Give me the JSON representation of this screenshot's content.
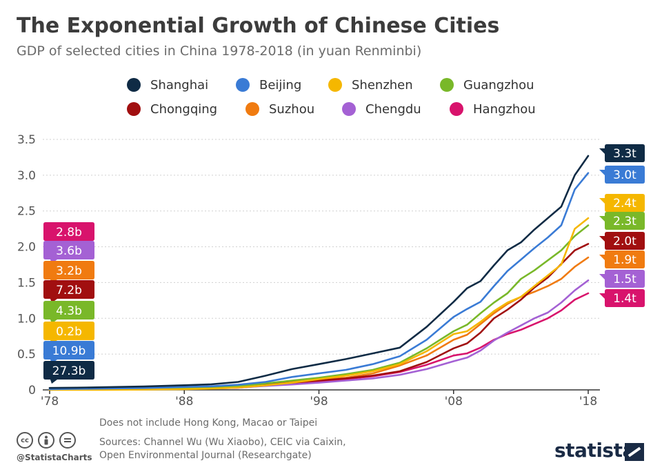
{
  "title": "The Exponential Growth of Chinese Cities",
  "subtitle": "GDP of selected cities in China 1978-2018 (in yuan Renminbi)",
  "colors": {
    "Shanghai": "#0f2b45",
    "Beijing": "#3a7bd5",
    "Shenzhen": "#f5b700",
    "Guangzhou": "#79b829",
    "Chongqing": "#a10f10",
    "Suzhou": "#f07b10",
    "Chengdu": "#a461d4",
    "Hangzhou": "#d8136c"
  },
  "chart_data": {
    "type": "line",
    "title": "GDP of selected cities in China 1978-2018",
    "xlabel": "",
    "ylabel": "",
    "ylim": [
      0,
      3.5
    ],
    "xlim": [
      1978,
      2018
    ],
    "yticks": [
      "0",
      "0.5",
      "1.0",
      "1.5",
      "2.0",
      "2.5",
      "3.0",
      "3.5"
    ],
    "xticks": [
      {
        "label": "'78",
        "year": 1978
      },
      {
        "label": "'88",
        "year": 1988
      },
      {
        "label": "'98",
        "year": 1998
      },
      {
        "label": "'08",
        "year": 2008
      },
      {
        "label": "'18",
        "year": 2018
      }
    ],
    "unit": "trillion yuan",
    "legend_position": "top",
    "start_labels": [
      "2.8b",
      "3.6b",
      "3.2b",
      "7.2b",
      "4.3b",
      "0.2b",
      "10.9b",
      "27.3b"
    ],
    "start_label_series": [
      "Hangzhou",
      "Chengdu",
      "Suzhou",
      "Chongqing",
      "Guangzhou",
      "Shenzhen",
      "Beijing",
      "Shanghai"
    ],
    "series": [
      {
        "name": "Shanghai",
        "end_label": "3.3t",
        "points": [
          [
            1978,
            0.027
          ],
          [
            1980,
            0.031
          ],
          [
            1985,
            0.047
          ],
          [
            1988,
            0.065
          ],
          [
            1990,
            0.078
          ],
          [
            1992,
            0.111
          ],
          [
            1994,
            0.197
          ],
          [
            1996,
            0.29
          ],
          [
            1998,
            0.36
          ],
          [
            2000,
            0.43
          ],
          [
            2002,
            0.51
          ],
          [
            2004,
            0.59
          ],
          [
            2006,
            0.88
          ],
          [
            2008,
            1.23
          ],
          [
            2009,
            1.42
          ],
          [
            2010,
            1.52
          ],
          [
            2011,
            1.74
          ],
          [
            2012,
            1.95
          ],
          [
            2013,
            2.06
          ],
          [
            2014,
            2.24
          ],
          [
            2015,
            2.4
          ],
          [
            2016,
            2.56
          ],
          [
            2017,
            3.0
          ],
          [
            2018,
            3.27
          ]
        ]
      },
      {
        "name": "Beijing",
        "end_label": "3.0t",
        "points": [
          [
            1978,
            0.011
          ],
          [
            1980,
            0.014
          ],
          [
            1985,
            0.026
          ],
          [
            1988,
            0.041
          ],
          [
            1990,
            0.05
          ],
          [
            1992,
            0.071
          ],
          [
            1994,
            0.11
          ],
          [
            1996,
            0.18
          ],
          [
            1998,
            0.23
          ],
          [
            2000,
            0.28
          ],
          [
            2002,
            0.36
          ],
          [
            2004,
            0.47
          ],
          [
            2006,
            0.7
          ],
          [
            2008,
            1.02
          ],
          [
            2009,
            1.13
          ],
          [
            2010,
            1.23
          ],
          [
            2011,
            1.45
          ],
          [
            2012,
            1.66
          ],
          [
            2013,
            1.82
          ],
          [
            2014,
            1.98
          ],
          [
            2015,
            2.13
          ],
          [
            2016,
            2.3
          ],
          [
            2017,
            2.8
          ],
          [
            2018,
            3.03
          ]
        ]
      },
      {
        "name": "Shenzhen",
        "end_label": "2.4t",
        "points": [
          [
            1978,
            0.0002
          ],
          [
            1982,
            0.001
          ],
          [
            1985,
            0.004
          ],
          [
            1988,
            0.009
          ],
          [
            1990,
            0.017
          ],
          [
            1992,
            0.032
          ],
          [
            1994,
            0.063
          ],
          [
            1996,
            0.1
          ],
          [
            1998,
            0.15
          ],
          [
            2000,
            0.2
          ],
          [
            2002,
            0.26
          ],
          [
            2004,
            0.36
          ],
          [
            2006,
            0.54
          ],
          [
            2008,
            0.78
          ],
          [
            2009,
            0.82
          ],
          [
            2010,
            0.95
          ],
          [
            2011,
            1.1
          ],
          [
            2012,
            1.22
          ],
          [
            2013,
            1.3
          ],
          [
            2014,
            1.45
          ],
          [
            2015,
            1.6
          ],
          [
            2016,
            1.75
          ],
          [
            2017,
            2.25
          ],
          [
            2018,
            2.4
          ]
        ]
      },
      {
        "name": "Guangzhou",
        "end_label": "2.3t",
        "points": [
          [
            1978,
            0.0043
          ],
          [
            1980,
            0.006
          ],
          [
            1985,
            0.012
          ],
          [
            1988,
            0.022
          ],
          [
            1990,
            0.032
          ],
          [
            1992,
            0.051
          ],
          [
            1994,
            0.09
          ],
          [
            1996,
            0.13
          ],
          [
            1998,
            0.17
          ],
          [
            2000,
            0.22
          ],
          [
            2002,
            0.28
          ],
          [
            2004,
            0.38
          ],
          [
            2006,
            0.58
          ],
          [
            2008,
            0.82
          ],
          [
            2009,
            0.91
          ],
          [
            2010,
            1.07
          ],
          [
            2011,
            1.22
          ],
          [
            2012,
            1.35
          ],
          [
            2013,
            1.55
          ],
          [
            2014,
            1.67
          ],
          [
            2015,
            1.81
          ],
          [
            2016,
            1.95
          ],
          [
            2017,
            2.15
          ],
          [
            2018,
            2.3
          ]
        ]
      },
      {
        "name": "Chongqing",
        "end_label": "2.0t",
        "points": [
          [
            1978,
            0.0072
          ],
          [
            1980,
            0.009
          ],
          [
            1985,
            0.016
          ],
          [
            1988,
            0.025
          ],
          [
            1990,
            0.033
          ],
          [
            1992,
            0.046
          ],
          [
            1994,
            0.075
          ],
          [
            1996,
            0.1
          ],
          [
            1998,
            0.13
          ],
          [
            2000,
            0.16
          ],
          [
            2002,
            0.2
          ],
          [
            2004,
            0.26
          ],
          [
            2006,
            0.39
          ],
          [
            2008,
            0.58
          ],
          [
            2009,
            0.65
          ],
          [
            2010,
            0.8
          ],
          [
            2011,
            1.0
          ],
          [
            2012,
            1.12
          ],
          [
            2013,
            1.26
          ],
          [
            2014,
            1.43
          ],
          [
            2015,
            1.57
          ],
          [
            2016,
            1.76
          ],
          [
            2017,
            1.95
          ],
          [
            2018,
            2.04
          ]
        ]
      },
      {
        "name": "Suzhou",
        "end_label": "1.9t",
        "points": [
          [
            1978,
            0.0032
          ],
          [
            1980,
            0.005
          ],
          [
            1985,
            0.01
          ],
          [
            1988,
            0.02
          ],
          [
            1990,
            0.028
          ],
          [
            1992,
            0.05
          ],
          [
            1994,
            0.08
          ],
          [
            1996,
            0.11
          ],
          [
            1998,
            0.14
          ],
          [
            2000,
            0.17
          ],
          [
            2002,
            0.23
          ],
          [
            2004,
            0.34
          ],
          [
            2006,
            0.48
          ],
          [
            2008,
            0.7
          ],
          [
            2009,
            0.77
          ],
          [
            2010,
            0.92
          ],
          [
            2011,
            1.07
          ],
          [
            2012,
            1.2
          ],
          [
            2013,
            1.3
          ],
          [
            2014,
            1.37
          ],
          [
            2015,
            1.45
          ],
          [
            2016,
            1.55
          ],
          [
            2017,
            1.72
          ],
          [
            2018,
            1.85
          ]
        ]
      },
      {
        "name": "Chengdu",
        "end_label": "1.5t",
        "points": [
          [
            1978,
            0.0036
          ],
          [
            1980,
            0.005
          ],
          [
            1985,
            0.009
          ],
          [
            1988,
            0.016
          ],
          [
            1990,
            0.022
          ],
          [
            1992,
            0.032
          ],
          [
            1994,
            0.055
          ],
          [
            1996,
            0.075
          ],
          [
            1998,
            0.1
          ],
          [
            2000,
            0.13
          ],
          [
            2002,
            0.16
          ],
          [
            2004,
            0.21
          ],
          [
            2006,
            0.29
          ],
          [
            2008,
            0.4
          ],
          [
            2009,
            0.45
          ],
          [
            2010,
            0.55
          ],
          [
            2011,
            0.69
          ],
          [
            2012,
            0.8
          ],
          [
            2013,
            0.9
          ],
          [
            2014,
            1.0
          ],
          [
            2015,
            1.08
          ],
          [
            2016,
            1.22
          ],
          [
            2017,
            1.39
          ],
          [
            2018,
            1.53
          ]
        ]
      },
      {
        "name": "Hangzhou",
        "end_label": "1.4t",
        "points": [
          [
            1978,
            0.0028
          ],
          [
            1980,
            0.004
          ],
          [
            1985,
            0.008
          ],
          [
            1988,
            0.015
          ],
          [
            1990,
            0.02
          ],
          [
            1992,
            0.03
          ],
          [
            1994,
            0.06
          ],
          [
            1996,
            0.085
          ],
          [
            1998,
            0.12
          ],
          [
            2000,
            0.15
          ],
          [
            2002,
            0.19
          ],
          [
            2004,
            0.25
          ],
          [
            2006,
            0.35
          ],
          [
            2008,
            0.48
          ],
          [
            2009,
            0.51
          ],
          [
            2010,
            0.59
          ],
          [
            2011,
            0.7
          ],
          [
            2012,
            0.78
          ],
          [
            2013,
            0.84
          ],
          [
            2014,
            0.92
          ],
          [
            2015,
            1.0
          ],
          [
            2016,
            1.11
          ],
          [
            2017,
            1.26
          ],
          [
            2018,
            1.35
          ]
        ]
      }
    ]
  },
  "note": "Does not include Hong Kong, Macao or Taipei",
  "source_line1": "Sources: Channel Wu (Wu Xiaobo), CEIC via Caixin,",
  "source_line2": "Open Environmental Journal (Researchgate)",
  "handle": "@StatistaCharts",
  "brand": "statista",
  "cc_icons": [
    "cc-icon",
    "by-icon",
    "nd-icon"
  ]
}
